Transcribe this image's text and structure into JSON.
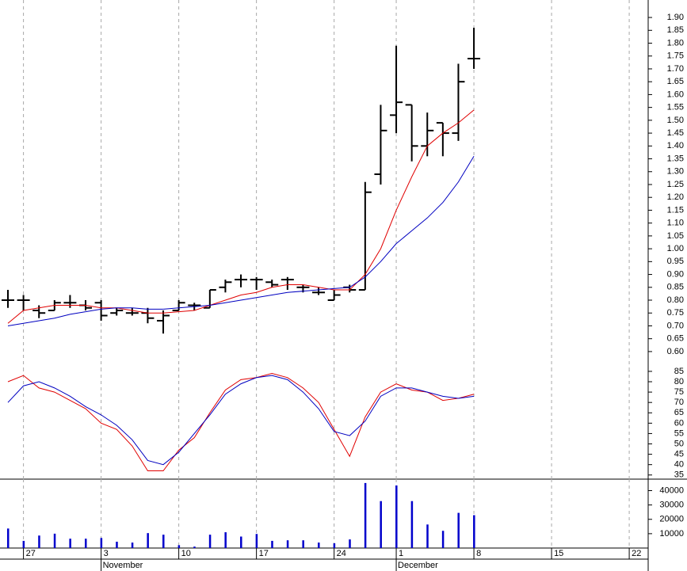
{
  "chart_data": [
    {
      "type": "ohlc",
      "color": "#000000",
      "x": [
        0,
        1,
        2,
        3,
        4,
        5,
        6,
        7,
        8,
        9,
        10,
        11,
        12,
        13,
        14,
        15,
        16,
        17,
        18,
        19,
        20,
        21,
        22,
        23,
        24,
        25,
        26,
        27,
        28,
        29,
        30
      ],
      "open": [
        0.8,
        0.8,
        0.76,
        0.76,
        0.79,
        0.78,
        0.79,
        0.75,
        0.75,
        0.75,
        0.72,
        0.76,
        0.78,
        0.77,
        0.85,
        0.88,
        0.88,
        0.87,
        0.88,
        0.85,
        0.83,
        0.8,
        0.85,
        0.84,
        1.29,
        1.52,
        1.56,
        1.4,
        1.49,
        1.45,
        1.74
      ],
      "high": [
        0.84,
        0.82,
        0.78,
        0.8,
        0.82,
        0.8,
        0.8,
        0.77,
        0.77,
        0.77,
        0.76,
        0.8,
        0.79,
        0.84,
        0.88,
        0.9,
        0.89,
        0.88,
        0.89,
        0.86,
        0.85,
        0.84,
        0.86,
        1.26,
        1.56,
        1.79,
        1.56,
        1.53,
        1.49,
        1.72,
        1.86
      ],
      "low": [
        0.77,
        0.76,
        0.73,
        0.76,
        0.77,
        0.76,
        0.72,
        0.74,
        0.74,
        0.71,
        0.67,
        0.76,
        0.76,
        0.77,
        0.83,
        0.85,
        0.84,
        0.85,
        0.84,
        0.83,
        0.82,
        0.8,
        0.83,
        0.84,
        1.25,
        1.45,
        1.34,
        1.36,
        1.36,
        1.42,
        1.7
      ],
      "close": [
        0.8,
        0.8,
        0.75,
        0.79,
        0.79,
        0.77,
        0.74,
        0.76,
        0.75,
        0.73,
        0.74,
        0.79,
        0.78,
        0.84,
        0.87,
        0.88,
        0.88,
        0.86,
        0.88,
        0.85,
        0.83,
        0.82,
        0.84,
        1.22,
        1.46,
        1.57,
        1.4,
        1.46,
        1.45,
        1.65,
        1.74
      ],
      "series": [
        {
          "color": "#e00000",
          "values": [
            0.71,
            0.76,
            0.77,
            0.78,
            0.78,
            0.78,
            0.77,
            0.77,
            0.76,
            0.75,
            0.75,
            0.755,
            0.76,
            0.78,
            0.8,
            0.82,
            0.83,
            0.85,
            0.86,
            0.86,
            0.85,
            0.84,
            0.84,
            0.9,
            1.0,
            1.15,
            1.28,
            1.4,
            1.45,
            1.49,
            1.54
          ]
        },
        {
          "color": "#0000c0",
          "values": [
            0.7,
            0.71,
            0.72,
            0.73,
            0.745,
            0.755,
            0.765,
            0.77,
            0.77,
            0.765,
            0.765,
            0.77,
            0.775,
            0.78,
            0.79,
            0.8,
            0.81,
            0.82,
            0.83,
            0.835,
            0.84,
            0.845,
            0.85,
            0.89,
            0.95,
            1.02,
            1.07,
            1.12,
            1.18,
            1.26,
            1.36
          ]
        }
      ],
      "ylim": [
        0.535,
        1.968
      ],
      "yticks": [
        {
          "value": 0.6,
          "label": "0.60"
        },
        {
          "value": 0.65,
          "label": "0.65"
        },
        {
          "value": 0.7,
          "label": "0.70"
        },
        {
          "value": 0.75,
          "label": "0.75"
        },
        {
          "value": 0.8,
          "label": "0.80"
        },
        {
          "value": 0.85,
          "label": "0.85"
        },
        {
          "value": 0.9,
          "label": "0.90"
        },
        {
          "value": 0.95,
          "label": "0.95"
        },
        {
          "value": 1.0,
          "label": "1.00"
        },
        {
          "value": 1.05,
          "label": "1.05"
        },
        {
          "value": 1.1,
          "label": "1.10"
        },
        {
          "value": 1.15,
          "label": "1.15"
        },
        {
          "value": 1.2,
          "label": "1.20"
        },
        {
          "value": 1.25,
          "label": "1.25"
        },
        {
          "value": 1.3,
          "label": "1.30"
        },
        {
          "value": 1.35,
          "label": "1.35"
        },
        {
          "value": 1.4,
          "label": "1.40"
        },
        {
          "value": 1.45,
          "label": "1.45"
        },
        {
          "value": 1.5,
          "label": "1.50"
        },
        {
          "value": 1.55,
          "label": "1.55"
        },
        {
          "value": 1.6,
          "label": "1.60"
        },
        {
          "value": 1.65,
          "label": "1.65"
        },
        {
          "value": 1.7,
          "label": "1.70"
        },
        {
          "value": 1.75,
          "label": "1.75"
        },
        {
          "value": 1.8,
          "label": "1.80"
        },
        {
          "value": 1.85,
          "label": "1.85"
        },
        {
          "value": 1.9,
          "label": "1.90"
        }
      ]
    },
    {
      "type": "line",
      "series": [
        {
          "color": "#e00000",
          "values": [
            80,
            83,
            77,
            75,
            71,
            67,
            60,
            57,
            49,
            37,
            37,
            47,
            53,
            65,
            76,
            81,
            82,
            84,
            82,
            77,
            70,
            57,
            44,
            63,
            75,
            79,
            76,
            75,
            71,
            72,
            74
          ]
        },
        {
          "color": "#0000c0",
          "values": [
            70,
            78,
            80,
            77,
            73,
            68,
            64,
            59,
            52,
            42,
            40,
            46,
            55,
            64,
            74,
            79,
            82,
            83,
            81,
            75,
            67,
            56,
            54,
            61,
            73,
            77,
            77,
            75,
            73,
            72,
            73
          ]
        }
      ],
      "ylim": [
        33,
        86.5
      ],
      "yticks": [
        35,
        40,
        45,
        50,
        55,
        60,
        65,
        70,
        75,
        80,
        85
      ]
    },
    {
      "type": "bar",
      "color": "#0000cc",
      "values": [
        13600,
        5000,
        8700,
        10000,
        6500,
        6500,
        7000,
        4400,
        3800,
        10400,
        9300,
        2000,
        1000,
        9300,
        11000,
        8000,
        9800,
        5000,
        5400,
        5400,
        3800,
        3300,
        6000,
        45300,
        32700,
        43600,
        32700,
        16400,
        12000,
        24500,
        22900
      ],
      "ylim": [
        0,
        48000
      ],
      "yticks": [
        10000,
        20000,
        30000,
        40000
      ],
      "xlim": [
        -0.51,
        41.22
      ],
      "xticks": [
        {
          "value": 1,
          "label": "27"
        },
        {
          "value": 6,
          "label": "3"
        },
        {
          "value": 11,
          "label": "10"
        },
        {
          "value": 16,
          "label": "17"
        },
        {
          "value": 21,
          "label": "24"
        },
        {
          "value": 25,
          "label": "1"
        },
        {
          "value": 30,
          "label": "8"
        },
        {
          "value": 35,
          "label": "15"
        },
        {
          "value": 40,
          "label": "22"
        }
      ],
      "month_labels": [
        {
          "value": 6,
          "label": "November"
        },
        {
          "value": 25,
          "label": "December"
        }
      ],
      "grid": true
    }
  ]
}
